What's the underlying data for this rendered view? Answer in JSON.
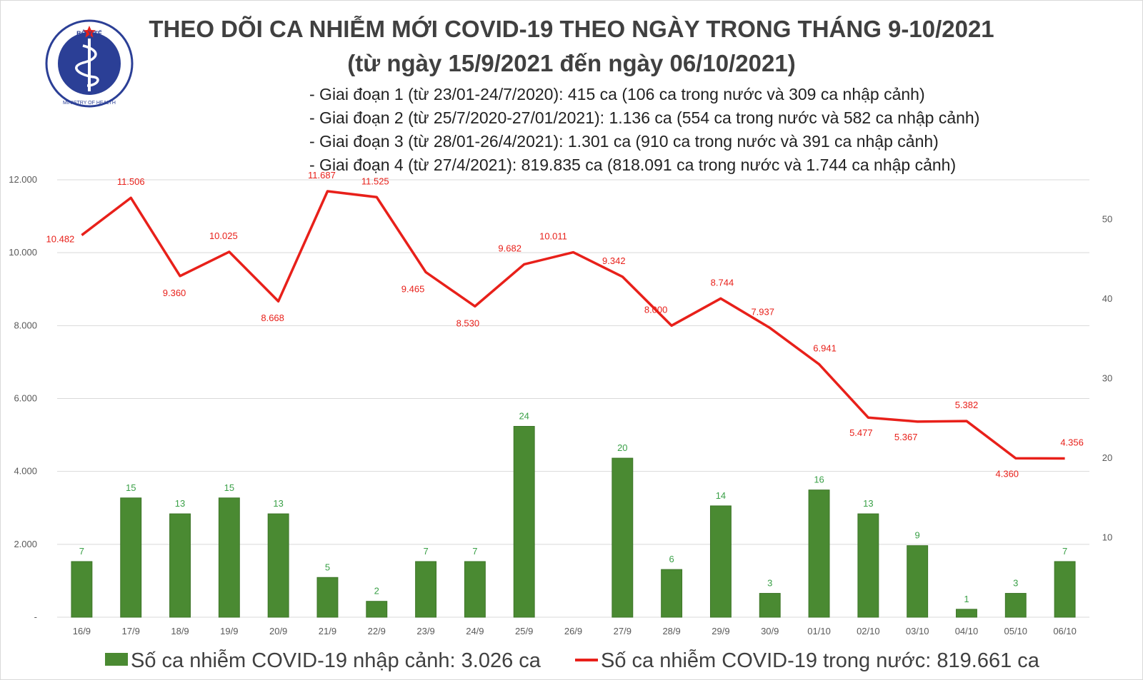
{
  "header": {
    "title_line1": "THEO DÕI CA NHIỄM MỚI COVID-19 THEO NGÀY TRONG THÁNG 9-10/2021",
    "title_line2": "(từ ngày 15/9/2021 đến ngày 06/10/2021)",
    "notes": [
      "- Giai đoạn 1 (từ 23/01-24/7/2020): 415 ca (106 ca trong nước và 309 ca nhập cảnh)",
      "- Giai đoạn 2 (từ 25/7/2020-27/01/2021): 1.136 ca (554 ca trong nước và 582 ca nhập cảnh)",
      "- Giai đoạn 3 (từ 28/01-26/4/2021): 1.301 ca (910 ca trong nước và 391 ca nhập cảnh)",
      "- Giai đoạn 4 (từ 27/4/2021): 819.835 ca (818.091 ca trong nước và 1.744 ca nhập cảnh)"
    ]
  },
  "logo": {
    "text_top": "BỘ Y TẾ",
    "text_bottom": "MINISTRY OF HEALTH"
  },
  "colors": {
    "bar": "#4a8a32",
    "line": "#e8201a",
    "bar_label": "#3aa047",
    "axis_text": "#595959"
  },
  "chart_data": {
    "type": "bar+line",
    "categories": [
      "16/9",
      "17/9",
      "18/9",
      "19/9",
      "20/9",
      "21/9",
      "22/9",
      "23/9",
      "24/9",
      "25/9",
      "26/9",
      "27/9",
      "28/9",
      "29/9",
      "30/9",
      "01/10",
      "02/10",
      "03/10",
      "04/10",
      "05/10",
      "06/10"
    ],
    "left_axis": {
      "ticks": [
        "-",
        "2.000",
        "4.000",
        "6.000",
        "8.000",
        "10.000",
        "12.000"
      ],
      "range": [
        0,
        12000
      ]
    },
    "right_axis": {
      "ticks": [
        "10",
        "20",
        "30",
        "40",
        "50"
      ],
      "range": [
        0,
        55
      ]
    },
    "series": [
      {
        "name": "Số ca nhiễm COVID-19 nhập cảnh: 3.026 ca",
        "kind": "bar",
        "axis": "right",
        "values": [
          7,
          15,
          13,
          15,
          13,
          5,
          2,
          7,
          7,
          24,
          0,
          20,
          6,
          14,
          3,
          16,
          13,
          9,
          1,
          3,
          7
        ],
        "labels": [
          "7",
          "15",
          "13",
          "15",
          "13",
          "5",
          "2",
          "7",
          "7",
          "24",
          "",
          "20",
          "6",
          "14",
          "3",
          "16",
          "13",
          "9",
          "1",
          "3",
          "7"
        ]
      },
      {
        "name": "Số ca nhiễm COVID-19 trong nước: 819.661 ca",
        "kind": "line",
        "axis": "left",
        "values": [
          10482,
          11506,
          9360,
          10025,
          8668,
          11687,
          11525,
          9465,
          8530,
          9682,
          10011,
          9342,
          8000,
          8744,
          7937,
          6941,
          5477,
          5367,
          5382,
          4360,
          4356
        ],
        "labels": [
          "10.482",
          "11.506",
          "9.360",
          "10.025",
          "8.668",
          "11.687",
          "11.525",
          "9.465",
          "8.530",
          "9.682",
          "10.011",
          "9.342",
          "8.000",
          "8.744",
          "7.937",
          "6.941",
          "5.477",
          "5.367",
          "5.382",
          "4.360",
          "4.356"
        ]
      }
    ]
  }
}
